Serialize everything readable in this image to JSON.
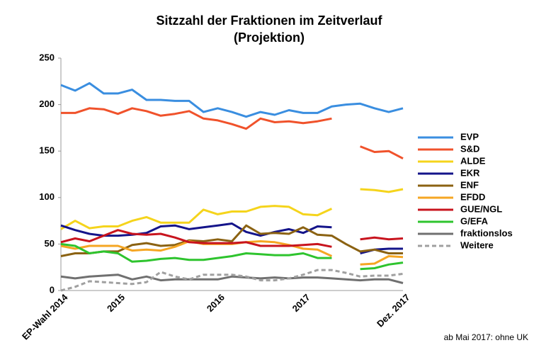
{
  "chart_data": {
    "type": "line",
    "title": [
      "Sitzzahl der Fraktionen im Zeitverlauf",
      "(Projektion)"
    ],
    "note": "ab Mai 2017: ohne UK",
    "categories": [
      "EP-Wahl 2014",
      null,
      null,
      null,
      "2015",
      null,
      null,
      null,
      null,
      null,
      null,
      "2016",
      null,
      null,
      null,
      null,
      null,
      "2017",
      null,
      null,
      null,
      null,
      null,
      null,
      "Dez. 2017"
    ],
    "ylim": [
      0,
      250
    ],
    "yticks": [
      0,
      50,
      100,
      150,
      200,
      250
    ],
    "grid": false,
    "legend": "right",
    "series": [
      {
        "name": "EVP",
        "color": "#3a8ee0",
        "values": [
          221,
          215,
          223,
          212,
          212,
          216,
          205,
          205,
          204,
          204,
          192,
          196,
          192,
          187,
          192,
          189,
          194,
          191,
          191,
          198,
          200,
          201,
          196,
          192,
          196
        ]
      },
      {
        "name": "S&D",
        "color": "#f0522b",
        "values": [
          191,
          191,
          196,
          195,
          190,
          196,
          193,
          188,
          190,
          193,
          185,
          183,
          179,
          174,
          185,
          181,
          182,
          180,
          182,
          185,
          null,
          155,
          149,
          150,
          142
        ]
      },
      {
        "name": "ALDE",
        "color": "#f5d41c",
        "values": [
          66,
          75,
          67,
          69,
          69,
          75,
          79,
          73,
          73,
          73,
          87,
          82,
          85,
          85,
          90,
          91,
          90,
          82,
          81,
          88,
          null,
          109,
          108,
          106,
          109
        ]
      },
      {
        "name": "EKR",
        "color": "#14148a",
        "values": [
          70,
          65,
          61,
          59,
          59,
          60,
          62,
          69,
          70,
          66,
          68,
          70,
          72,
          63,
          59,
          63,
          66,
          62,
          69,
          68,
          null,
          40,
          44,
          45,
          45
        ]
      },
      {
        "name": "ENF",
        "color": "#8b6212",
        "values": [
          37,
          40,
          40,
          42,
          42,
          49,
          51,
          48,
          49,
          54,
          53,
          55,
          53,
          70,
          61,
          62,
          61,
          68,
          60,
          59,
          50,
          42,
          44,
          40,
          40
        ]
      },
      {
        "name": "EFDD",
        "color": "#f5a623",
        "values": [
          48,
          45,
          48,
          48,
          48,
          43,
          44,
          43,
          47,
          53,
          50,
          50,
          50,
          52,
          53,
          52,
          49,
          45,
          44,
          37,
          null,
          28,
          29,
          37,
          36
        ]
      },
      {
        "name": "GUE/NGL",
        "color": "#c8141e",
        "values": [
          52,
          56,
          53,
          59,
          65,
          61,
          60,
          61,
          57,
          52,
          51,
          51,
          51,
          52,
          48,
          48,
          48,
          49,
          50,
          47,
          null,
          55,
          57,
          55,
          56
        ]
      },
      {
        "name": "G/EFA",
        "color": "#2ec42e",
        "values": [
          50,
          48,
          40,
          42,
          40,
          31,
          32,
          34,
          35,
          33,
          33,
          35,
          37,
          40,
          39,
          38,
          38,
          40,
          35,
          35,
          null,
          23,
          24,
          28,
          30
        ]
      },
      {
        "name": "fraktionslos",
        "color": "#707070",
        "values": [
          15,
          13,
          15,
          16,
          17,
          12,
          15,
          11,
          12,
          12,
          12,
          12,
          15,
          14,
          13,
          14,
          13,
          14,
          14,
          13,
          12,
          11,
          12,
          12,
          8
        ]
      },
      {
        "name": "Weitere",
        "color": "#a0a0a0",
        "dashed": true,
        "values": [
          0,
          4,
          10,
          9,
          8,
          7,
          9,
          20,
          15,
          12,
          17,
          17,
          17,
          15,
          11,
          11,
          13,
          17,
          22,
          22,
          19,
          15,
          16,
          16,
          18
        ]
      }
    ]
  }
}
